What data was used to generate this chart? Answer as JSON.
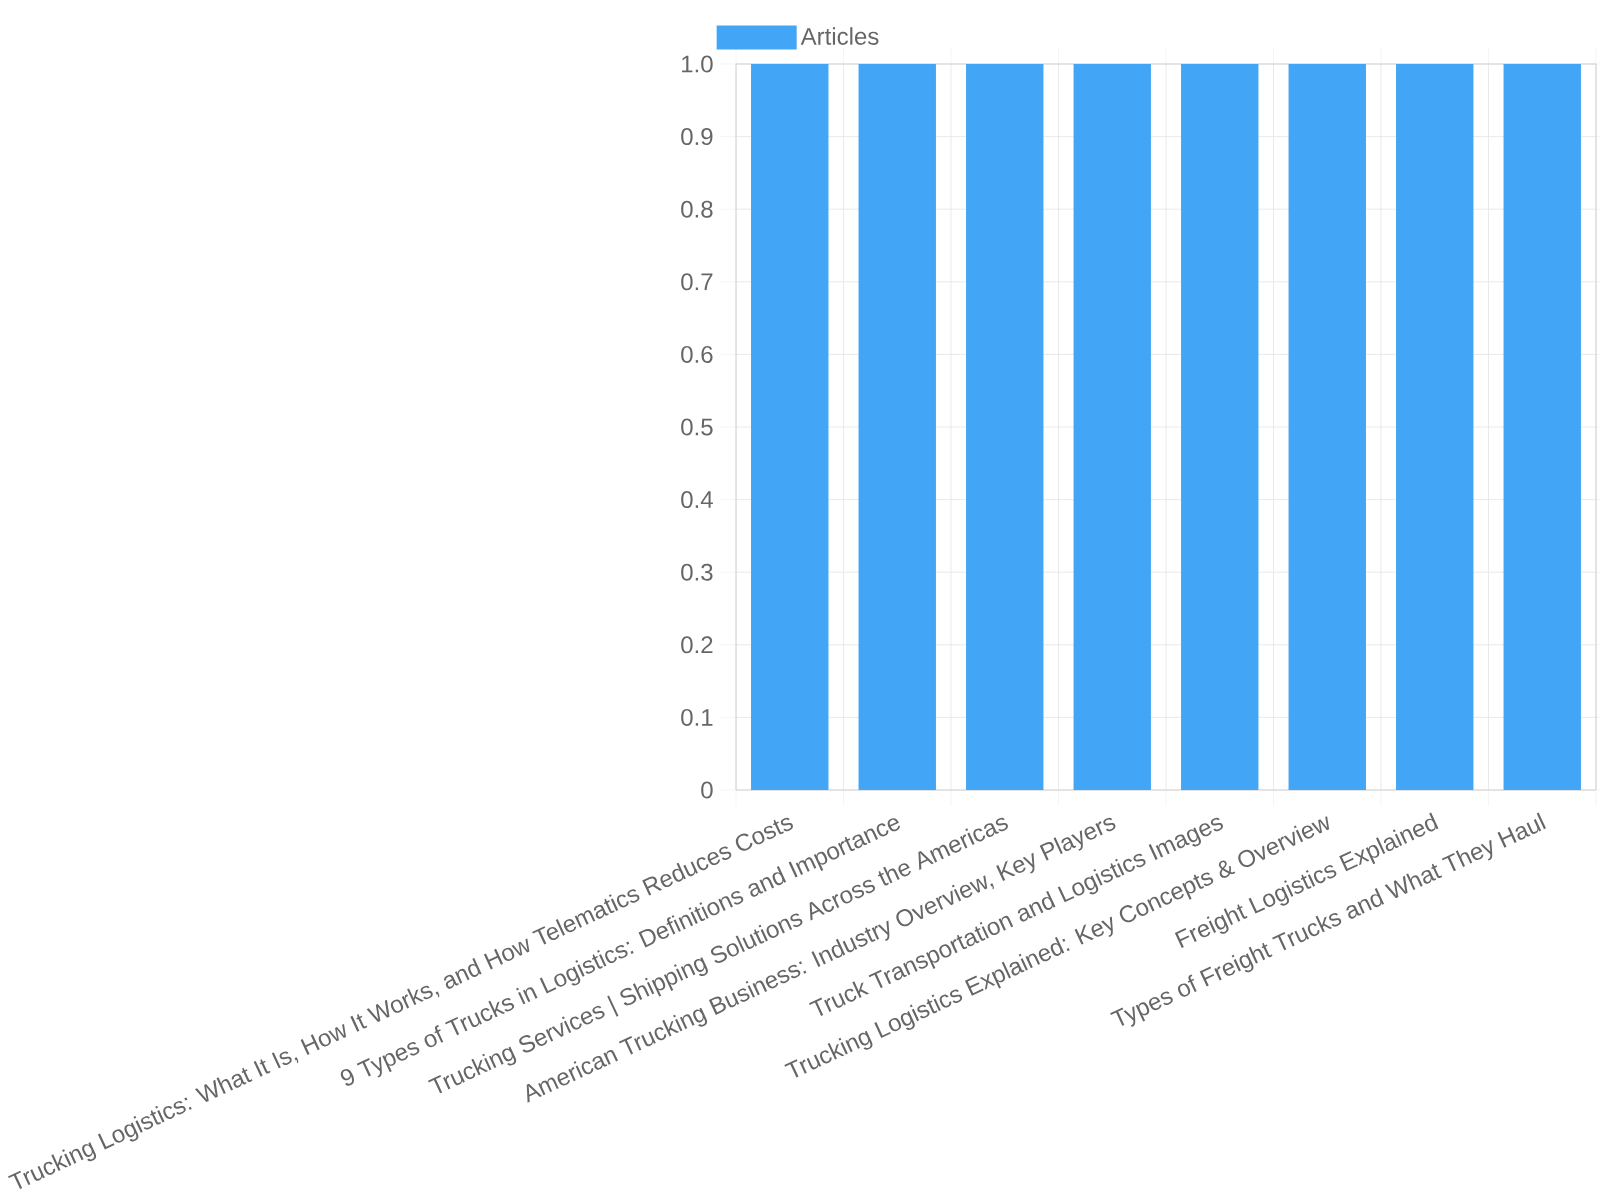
{
  "chart_data": {
    "type": "bar",
    "categories": [
      "Trucking Logistics: What It Is, How It Works, and How Telematics Reduces Costs",
      "9 Types of Trucks in Logistics: Definitions and Importance",
      "Trucking Services | Shipping Solutions Across the Americas",
      "American Trucking Business: Industry Overview, Key Players",
      "Truck Transportation and Logistics Images",
      "Trucking Logistics Explained: Key Concepts & Overview",
      "Freight Logistics Explained",
      "Types of Freight Trucks and What They Haul"
    ],
    "series": [
      {
        "name": "Articles",
        "color": "#42a5f5",
        "values": [
          1,
          1,
          1,
          1,
          1,
          1,
          1,
          1
        ]
      }
    ],
    "ylim": [
      0,
      1
    ],
    "yticks": [
      0,
      0.1,
      0.2,
      0.3,
      0.4,
      0.5,
      0.6,
      0.7,
      0.8,
      0.9,
      {
        "value": 1,
        "label": "1.0"
      }
    ],
    "grid": true,
    "legend": "top"
  }
}
